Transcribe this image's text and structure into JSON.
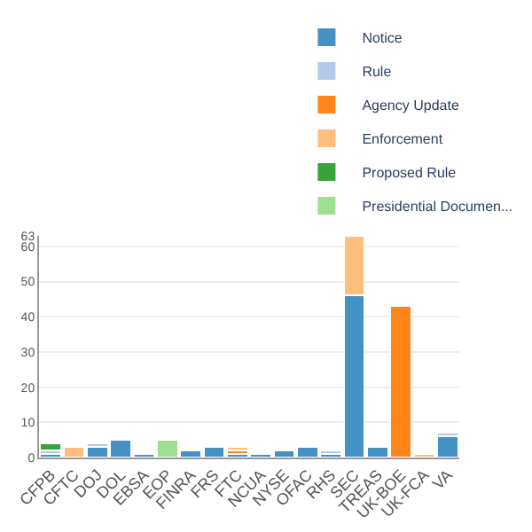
{
  "chart_data": {
    "type": "bar",
    "stacked": true,
    "categories": [
      "CFPB",
      "CFTC",
      "DOJ",
      "DOL",
      "EBSA",
      "EOP",
      "FINRA",
      "FRS",
      "FTC",
      "NCUA",
      "NYSE",
      "OFAC",
      "RHS",
      "SEC",
      "TREAS",
      "UK-BOE",
      "UK-FCA",
      "VA"
    ],
    "series": [
      {
        "name": "Notice",
        "color": "#3b8cc4",
        "values": [
          1,
          null,
          3,
          5,
          1,
          null,
          2,
          3,
          1,
          1,
          2,
          3,
          1,
          46,
          3,
          null,
          null,
          6
        ]
      },
      {
        "name": "Rule",
        "color": "#aec7e8",
        "values": [
          1,
          null,
          1,
          null,
          null,
          null,
          null,
          null,
          null,
          null,
          null,
          null,
          1,
          null,
          null,
          null,
          null,
          1
        ]
      },
      {
        "name": "Agency Update",
        "color": "#ff7f0e",
        "values": [
          null,
          null,
          null,
          null,
          null,
          null,
          null,
          null,
          1,
          null,
          null,
          null,
          null,
          null,
          null,
          43,
          null,
          null
        ]
      },
      {
        "name": "Enforcement",
        "color": "#ffbb78",
        "values": [
          null,
          3,
          null,
          null,
          null,
          null,
          null,
          null,
          1,
          null,
          null,
          null,
          null,
          17,
          null,
          null,
          1,
          null
        ]
      },
      {
        "name": "Proposed Rule",
        "color": "#2ca02c",
        "values": [
          2,
          null,
          null,
          null,
          null,
          null,
          null,
          null,
          null,
          null,
          null,
          null,
          null,
          null,
          null,
          null,
          null,
          null
        ]
      },
      {
        "name": "Presidential Documen...",
        "color": "#98df8a",
        "values": [
          null,
          null,
          null,
          null,
          null,
          5,
          null,
          null,
          null,
          null,
          null,
          null,
          null,
          null,
          null,
          null,
          null,
          null
        ]
      }
    ],
    "ylim": [
      0,
      63
    ],
    "yticks": [
      0,
      10,
      20,
      30,
      40,
      50,
      60,
      63
    ],
    "grid": "y",
    "legend": "top right"
  }
}
